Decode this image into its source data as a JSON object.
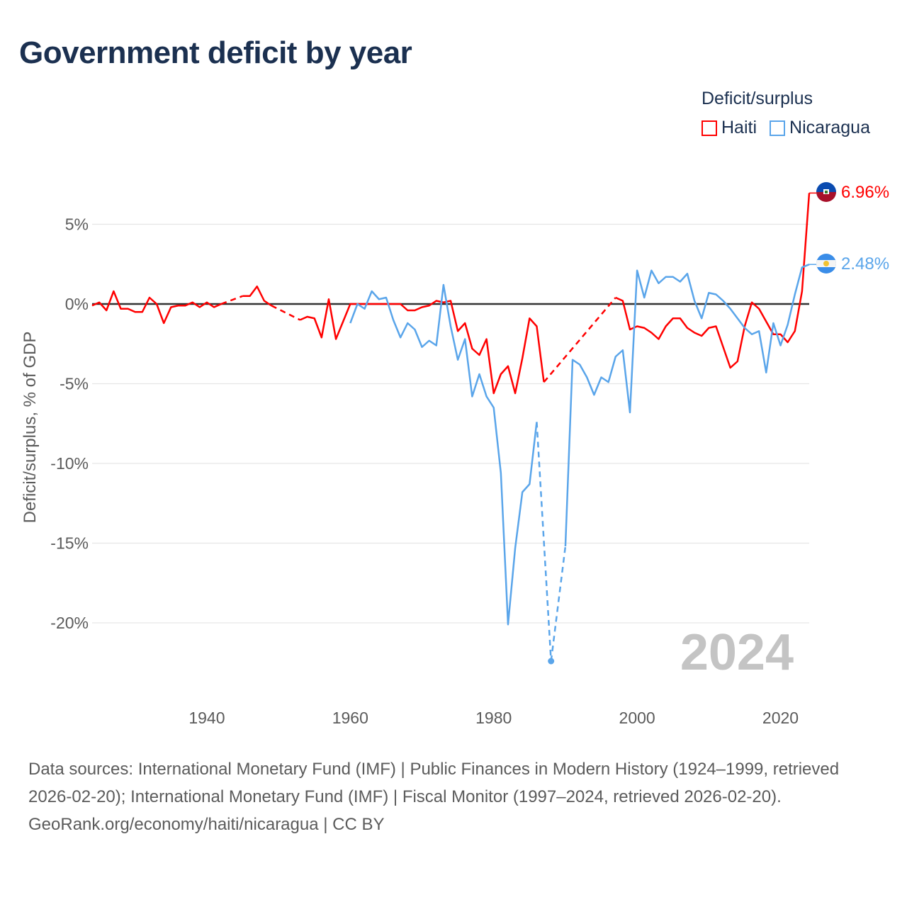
{
  "title": "Government deficit by year",
  "legend": {
    "title": "Deficit/surplus",
    "items": [
      {
        "label": "Haiti",
        "color": "#ff0000"
      },
      {
        "label": "Nicaragua",
        "color": "#5aa5ea"
      }
    ]
  },
  "end_labels": {
    "haiti": "6.96%",
    "nicaragua": "2.48%"
  },
  "year_watermark": "2024",
  "footer": {
    "sources": "Data sources: International Monetary Fund (IMF) | Public Finances in Modern History (1924–1999, retrieved 2026-02-20); International Monetary Fund (IMF) | Fiscal Monitor (1997–2024, retrieved 2026-02-20).",
    "credit": "GeoRank.org/economy/haiti/nicaragua | CC BY"
  },
  "chart_data": {
    "type": "line",
    "title": "Government deficit by year",
    "xlabel": "",
    "ylabel": "Deficit/surplus, % of GDP",
    "xlim": [
      1924,
      2024
    ],
    "ylim": [
      -23,
      7.5
    ],
    "xticks": [
      1940,
      1960,
      1980,
      2000,
      2020
    ],
    "yticks": [
      5,
      0,
      -5,
      -10,
      -15,
      -20
    ],
    "ytick_labels": [
      "5%",
      "0%",
      "-5%",
      "-10%",
      "-15%",
      "-20%"
    ],
    "grid": true,
    "legend_position": "top-right",
    "series": [
      {
        "name": "Haiti",
        "color": "#ff0000",
        "start_year": 1924,
        "values": [
          -0.1,
          0.1,
          -0.4,
          0.8,
          -0.3,
          -0.3,
          -0.5,
          -0.5,
          0.4,
          0.0,
          -1.2,
          -0.2,
          -0.1,
          -0.1,
          0.1,
          -0.2,
          0.1,
          -0.2,
          0.0,
          null,
          null,
          0.5,
          0.5,
          1.1,
          0.2,
          -0.1,
          null,
          null,
          null,
          -1.0,
          -0.8,
          -0.9,
          -2.1,
          0.3,
          -2.2,
          -1.1,
          0.0,
          0.0,
          0.0,
          0.0,
          0.0,
          0.0,
          0.0,
          0.0,
          -0.4,
          -0.4,
          -0.2,
          -0.1,
          0.2,
          0.1,
          0.2,
          -1.7,
          -1.2,
          -2.8,
          -3.2,
          -2.2,
          -5.6,
          -4.4,
          -3.9,
          -5.6,
          -3.4,
          -0.9,
          -1.4,
          -4.9,
          null,
          null,
          null,
          null,
          null,
          null,
          null,
          null,
          null,
          0.4,
          0.2,
          -1.6,
          -1.4,
          -1.5,
          -1.8,
          -2.2,
          -1.4,
          -0.9,
          -0.9,
          -1.5,
          -1.8,
          -2.0,
          -1.5,
          -1.4,
          -2.7,
          -4.0,
          -3.6,
          -1.4,
          0.1,
          -0.3,
          -1.1,
          -1.9,
          -1.9,
          -2.4,
          -1.7,
          0.8,
          6.96
        ]
      },
      {
        "name": "Nicaragua",
        "color": "#5aa5ea",
        "start_year": 1960,
        "values": [
          -1.2,
          0.0,
          -0.3,
          0.8,
          0.3,
          0.4,
          -1.0,
          -2.1,
          -1.2,
          -1.6,
          -2.7,
          -2.3,
          -2.6,
          1.2,
          -1.4,
          -3.5,
          -2.2,
          -5.8,
          -4.4,
          -5.8,
          -6.5,
          -10.6,
          -20.1,
          -15.3,
          -11.8,
          -11.3,
          -7.4,
          null,
          -22.4,
          null,
          -15.2,
          -3.5,
          -3.8,
          -4.6,
          -5.7,
          -4.6,
          -4.9,
          -3.3,
          -2.9,
          -6.8,
          2.1,
          0.4,
          2.1,
          1.3,
          1.7,
          1.7,
          1.4,
          1.9,
          0.2,
          -0.9,
          0.7,
          0.6,
          0.2,
          -0.3,
          -0.9,
          -1.5,
          -1.9,
          -1.7,
          -4.3,
          -1.2,
          -2.6,
          -1.3,
          0.6,
          2.3,
          2.48
        ]
      }
    ]
  }
}
